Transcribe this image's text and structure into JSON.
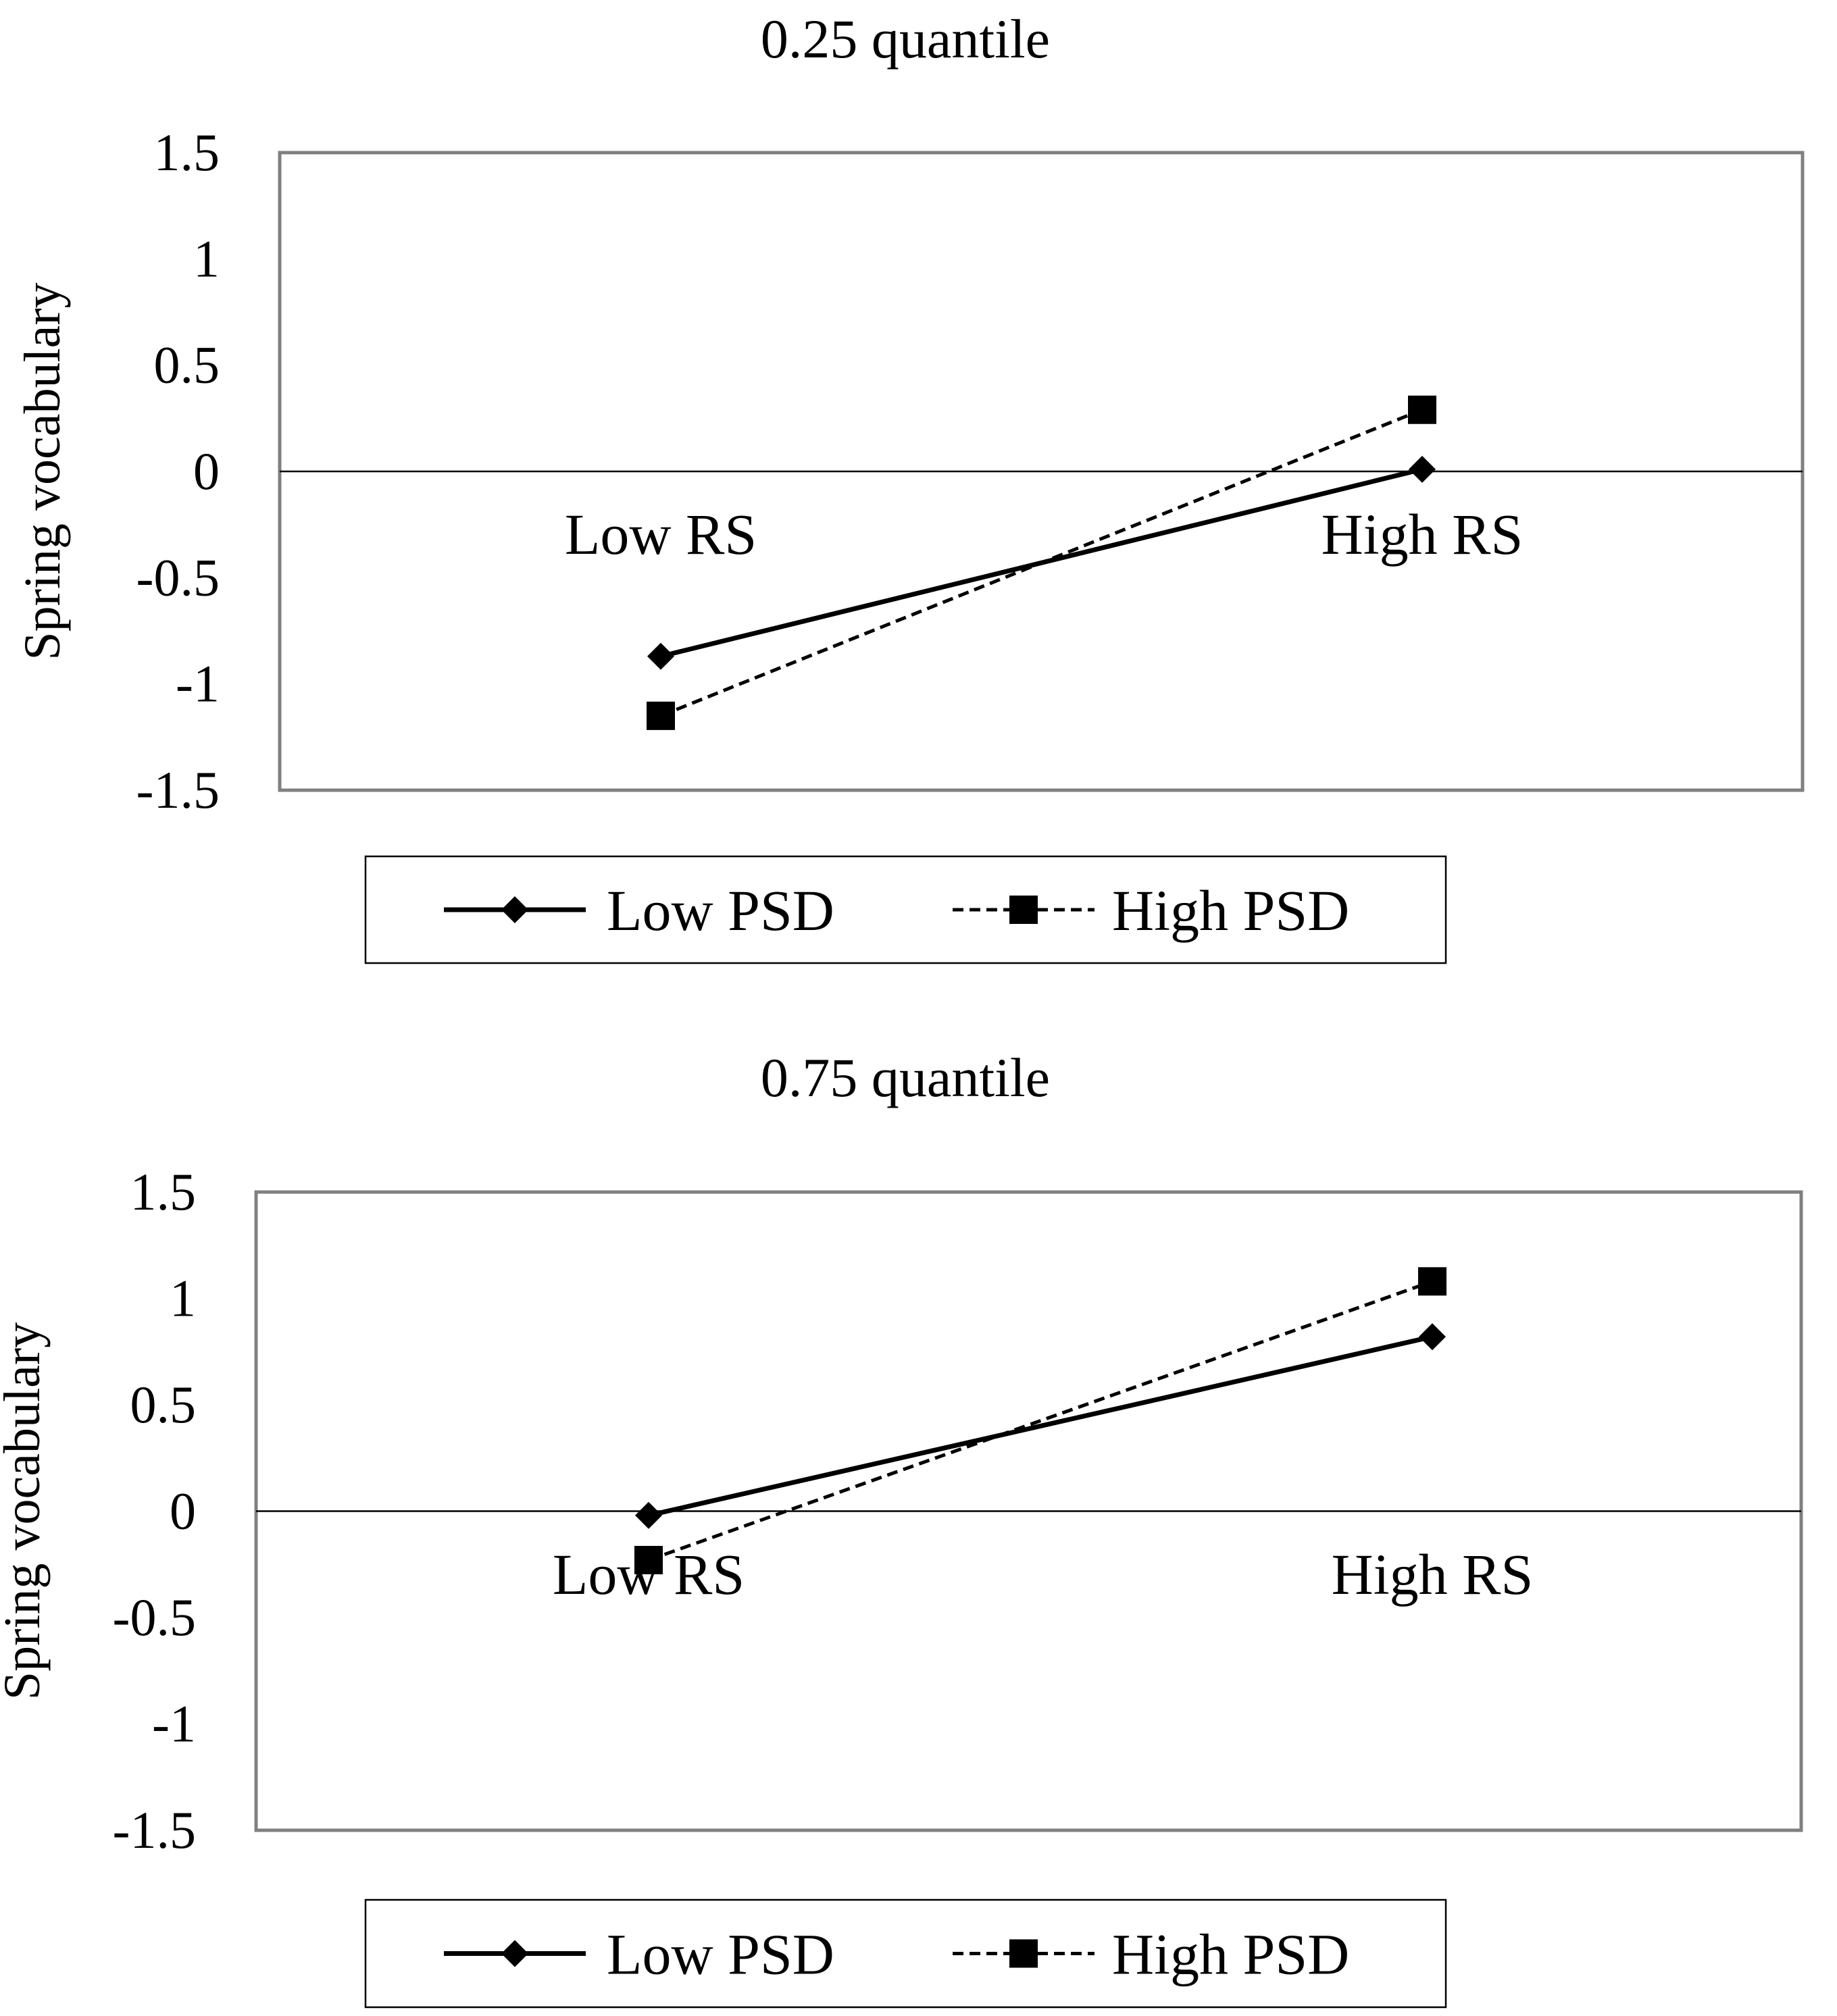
{
  "chart_data": [
    {
      "type": "line",
      "title": "0.25 quantile",
      "ylabel": "Spring vocabulary",
      "xlabel": "",
      "categories": [
        "Low RS",
        "High RS"
      ],
      "ylim": [
        -1.5,
        1.5
      ],
      "yticks": [
        "1.5",
        "1",
        "0.5",
        "0",
        "-0.5",
        "-1",
        "-1.5"
      ],
      "series": [
        {
          "name": "Low PSD",
          "values": [
            -0.87,
            0.01
          ],
          "style": "solid",
          "marker": "diamond"
        },
        {
          "name": "High PSD",
          "values": [
            -1.15,
            0.29
          ],
          "style": "dashed",
          "marker": "square"
        }
      ],
      "legend": "below"
    },
    {
      "type": "line",
      "title": "0.75 quantile",
      "ylabel": "Spring vocabulary",
      "xlabel": "",
      "categories": [
        "Low RS",
        "High RS"
      ],
      "ylim": [
        -1.5,
        1.5
      ],
      "yticks": [
        "1.5",
        "1",
        "0.5",
        "0",
        "-0.5",
        "-1",
        "-1.5"
      ],
      "series": [
        {
          "name": "Low PSD",
          "values": [
            -0.02,
            0.82
          ],
          "style": "solid",
          "marker": "diamond"
        },
        {
          "name": "High PSD",
          "values": [
            -0.23,
            1.08
          ],
          "style": "dashed",
          "marker": "square"
        }
      ],
      "legend": "below"
    }
  ],
  "colors": {
    "line": "#000000",
    "frame": "#808080",
    "background": "#ffffff"
  }
}
